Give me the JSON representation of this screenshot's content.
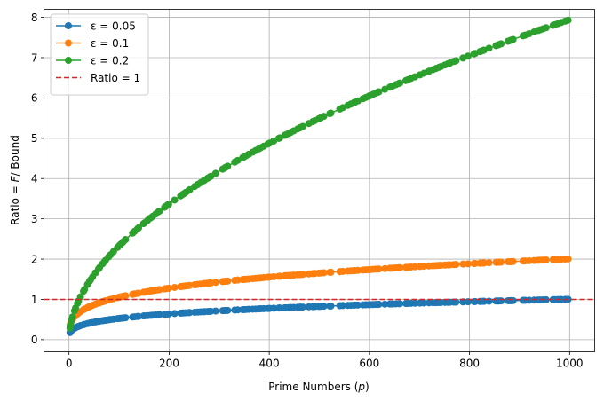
{
  "chart_data": {
    "type": "scatter",
    "xlabel": "Prime Numbers (p)",
    "ylabel": "Ratio = F / Bound",
    "xlim": [
      -50,
      1050
    ],
    "ylim": [
      -0.3,
      8.2
    ],
    "xticks": [
      0,
      200,
      400,
      600,
      800,
      1000
    ],
    "yticks": [
      0,
      1,
      2,
      3,
      4,
      5,
      6,
      7,
      8
    ],
    "grid": true,
    "legend_position": "top-left",
    "reference_line": {
      "y": 1,
      "label": "Ratio = 1",
      "color": "#d62728",
      "style": "dashed"
    },
    "series": [
      {
        "name": "ε = 0.05",
        "color": "#1f77b4",
        "c": 0.145,
        "exponent": 0.28,
        "values_at": {
          "2": 0.1,
          "100": 0.78,
          "200": 0.83,
          "400": 0.89,
          "600": 0.93,
          "800": 0.96,
          "997": 0.99
        }
      },
      {
        "name": "ε = 0.1",
        "color": "#ff7f0e",
        "c": 0.29,
        "exponent": 0.28,
        "values_at": {
          "2": 0.1,
          "100": 1.25,
          "200": 1.42,
          "400": 1.64,
          "600": 1.78,
          "800": 1.88,
          "997": 1.98
        }
      },
      {
        "name": "ε = 0.2",
        "color": "#2ca02c",
        "c": 0.2,
        "exponent": 0.533,
        "values_at": {
          "2": 0.1,
          "100": 3.25,
          "200": 4.15,
          "400": 5.45,
          "600": 6.25,
          "800": 7.2,
          "997": 7.9
        }
      }
    ],
    "x_range": [
      2,
      997
    ]
  }
}
